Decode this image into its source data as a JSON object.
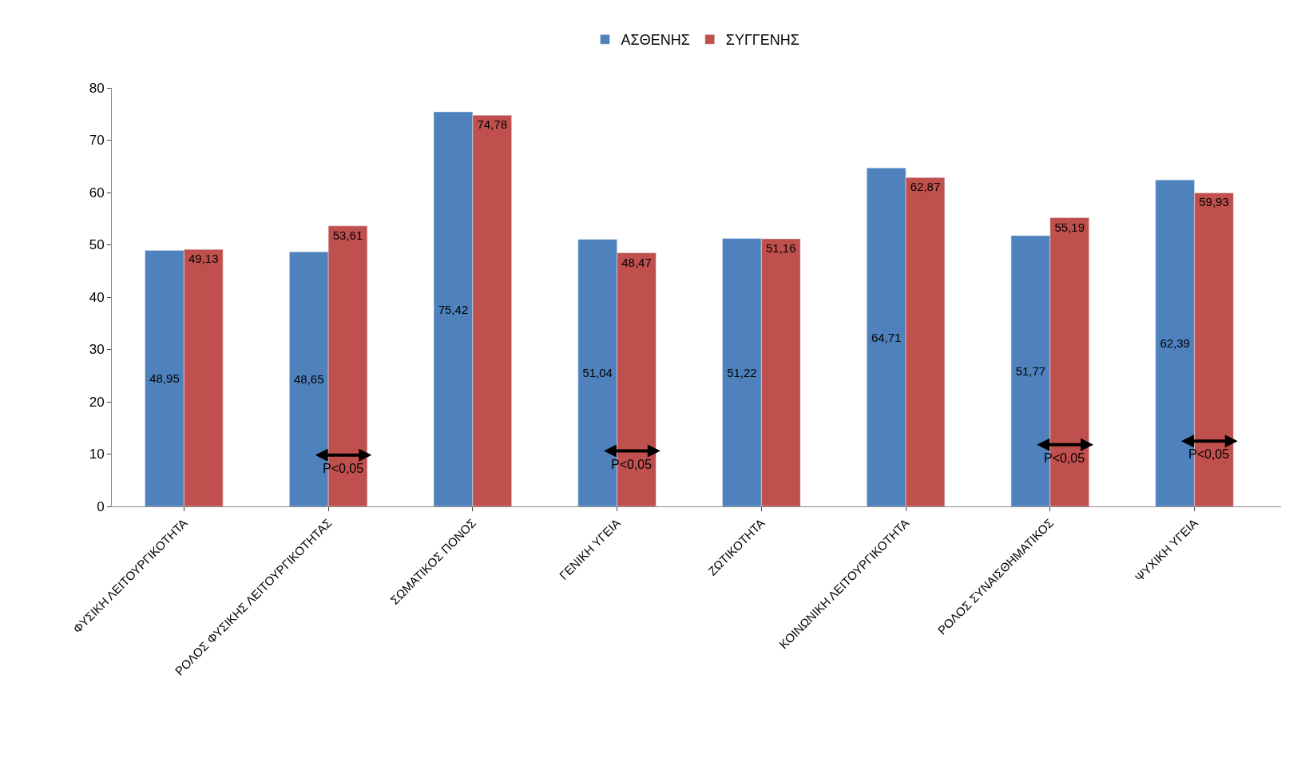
{
  "chart_data": {
    "type": "bar",
    "categories": [
      "ΦΥΣΙΚΗ ΛΕΙΤΟΥΡΓΙΚΟΤΗΤΑ",
      "ΡΟΛΟΣ ΦΥΣΙΚΗΣ ΛΕΙΤΟΥΡΓΙΚΟΤΗΤΑΣ",
      "ΣΩΜΑΤΙΚΟΣ ΠΟΝΟΣ",
      "ΓΕΝΙΚΗ ΥΓΕΙΑ",
      "ΖΩΤΙΚΟΤΗΤΑ",
      "ΚΟΙΝΩΝΙΚΗ ΛΕΙΤΟΥΡΓΙΚΟΤΗΤΑ",
      "ΡΟΛΟΣ ΣΥΝΑΙΣΘΗΜΑΤΙΚΟΣ",
      "ΨΥΧΙΚΗ ΥΓΕΙΑ"
    ],
    "series": [
      {
        "name": "ΑΣΘΕΝΗΣ",
        "color": "#4f81bd",
        "values": [
          48.95,
          48.65,
          75.42,
          51.04,
          51.22,
          64.71,
          51.77,
          62.39
        ],
        "value_labels": [
          "48,95",
          "48,65",
          "75,42",
          "51,04",
          "51,22",
          "64,71",
          "51,77",
          "62,39"
        ]
      },
      {
        "name": "ΣΥΓΓΕΝΗΣ",
        "color": "#c0504d",
        "values": [
          49.13,
          53.61,
          74.78,
          48.47,
          51.16,
          62.87,
          55.19,
          59.93
        ],
        "value_labels": [
          "49,13",
          "53,61",
          "74,78",
          "48,47",
          "51,16",
          "62,87",
          "55,19",
          "59,93"
        ]
      }
    ],
    "ylim": [
      0,
      80
    ],
    "yticks": [
      0,
      10,
      20,
      30,
      40,
      50,
      60,
      70,
      80
    ],
    "legend": "top",
    "annotations": [
      {
        "text": "P<0,05",
        "x": "ΡΟΛΟΣ ΦΥΣΙΚΗΣ ΛΕΙΤΟΥΡΓΙΚΟΤΗΤΑΣ",
        "y": 9.8
      },
      {
        "text": "P<0,05",
        "x": "ΓΕΝΙΚΗ ΥΓΕΙΑ",
        "y": 10.6
      },
      {
        "text": "P<0,05",
        "x": "ΡΟΛΟΣ ΣΥΝΑΙΣΘΗΜΑΤΙΚΟΣ",
        "y": 11.8
      },
      {
        "text": "P<0,05",
        "x": "ΨΥΧΙΚΗ ΥΓΕΙΑ",
        "y": 12.5
      }
    ]
  }
}
